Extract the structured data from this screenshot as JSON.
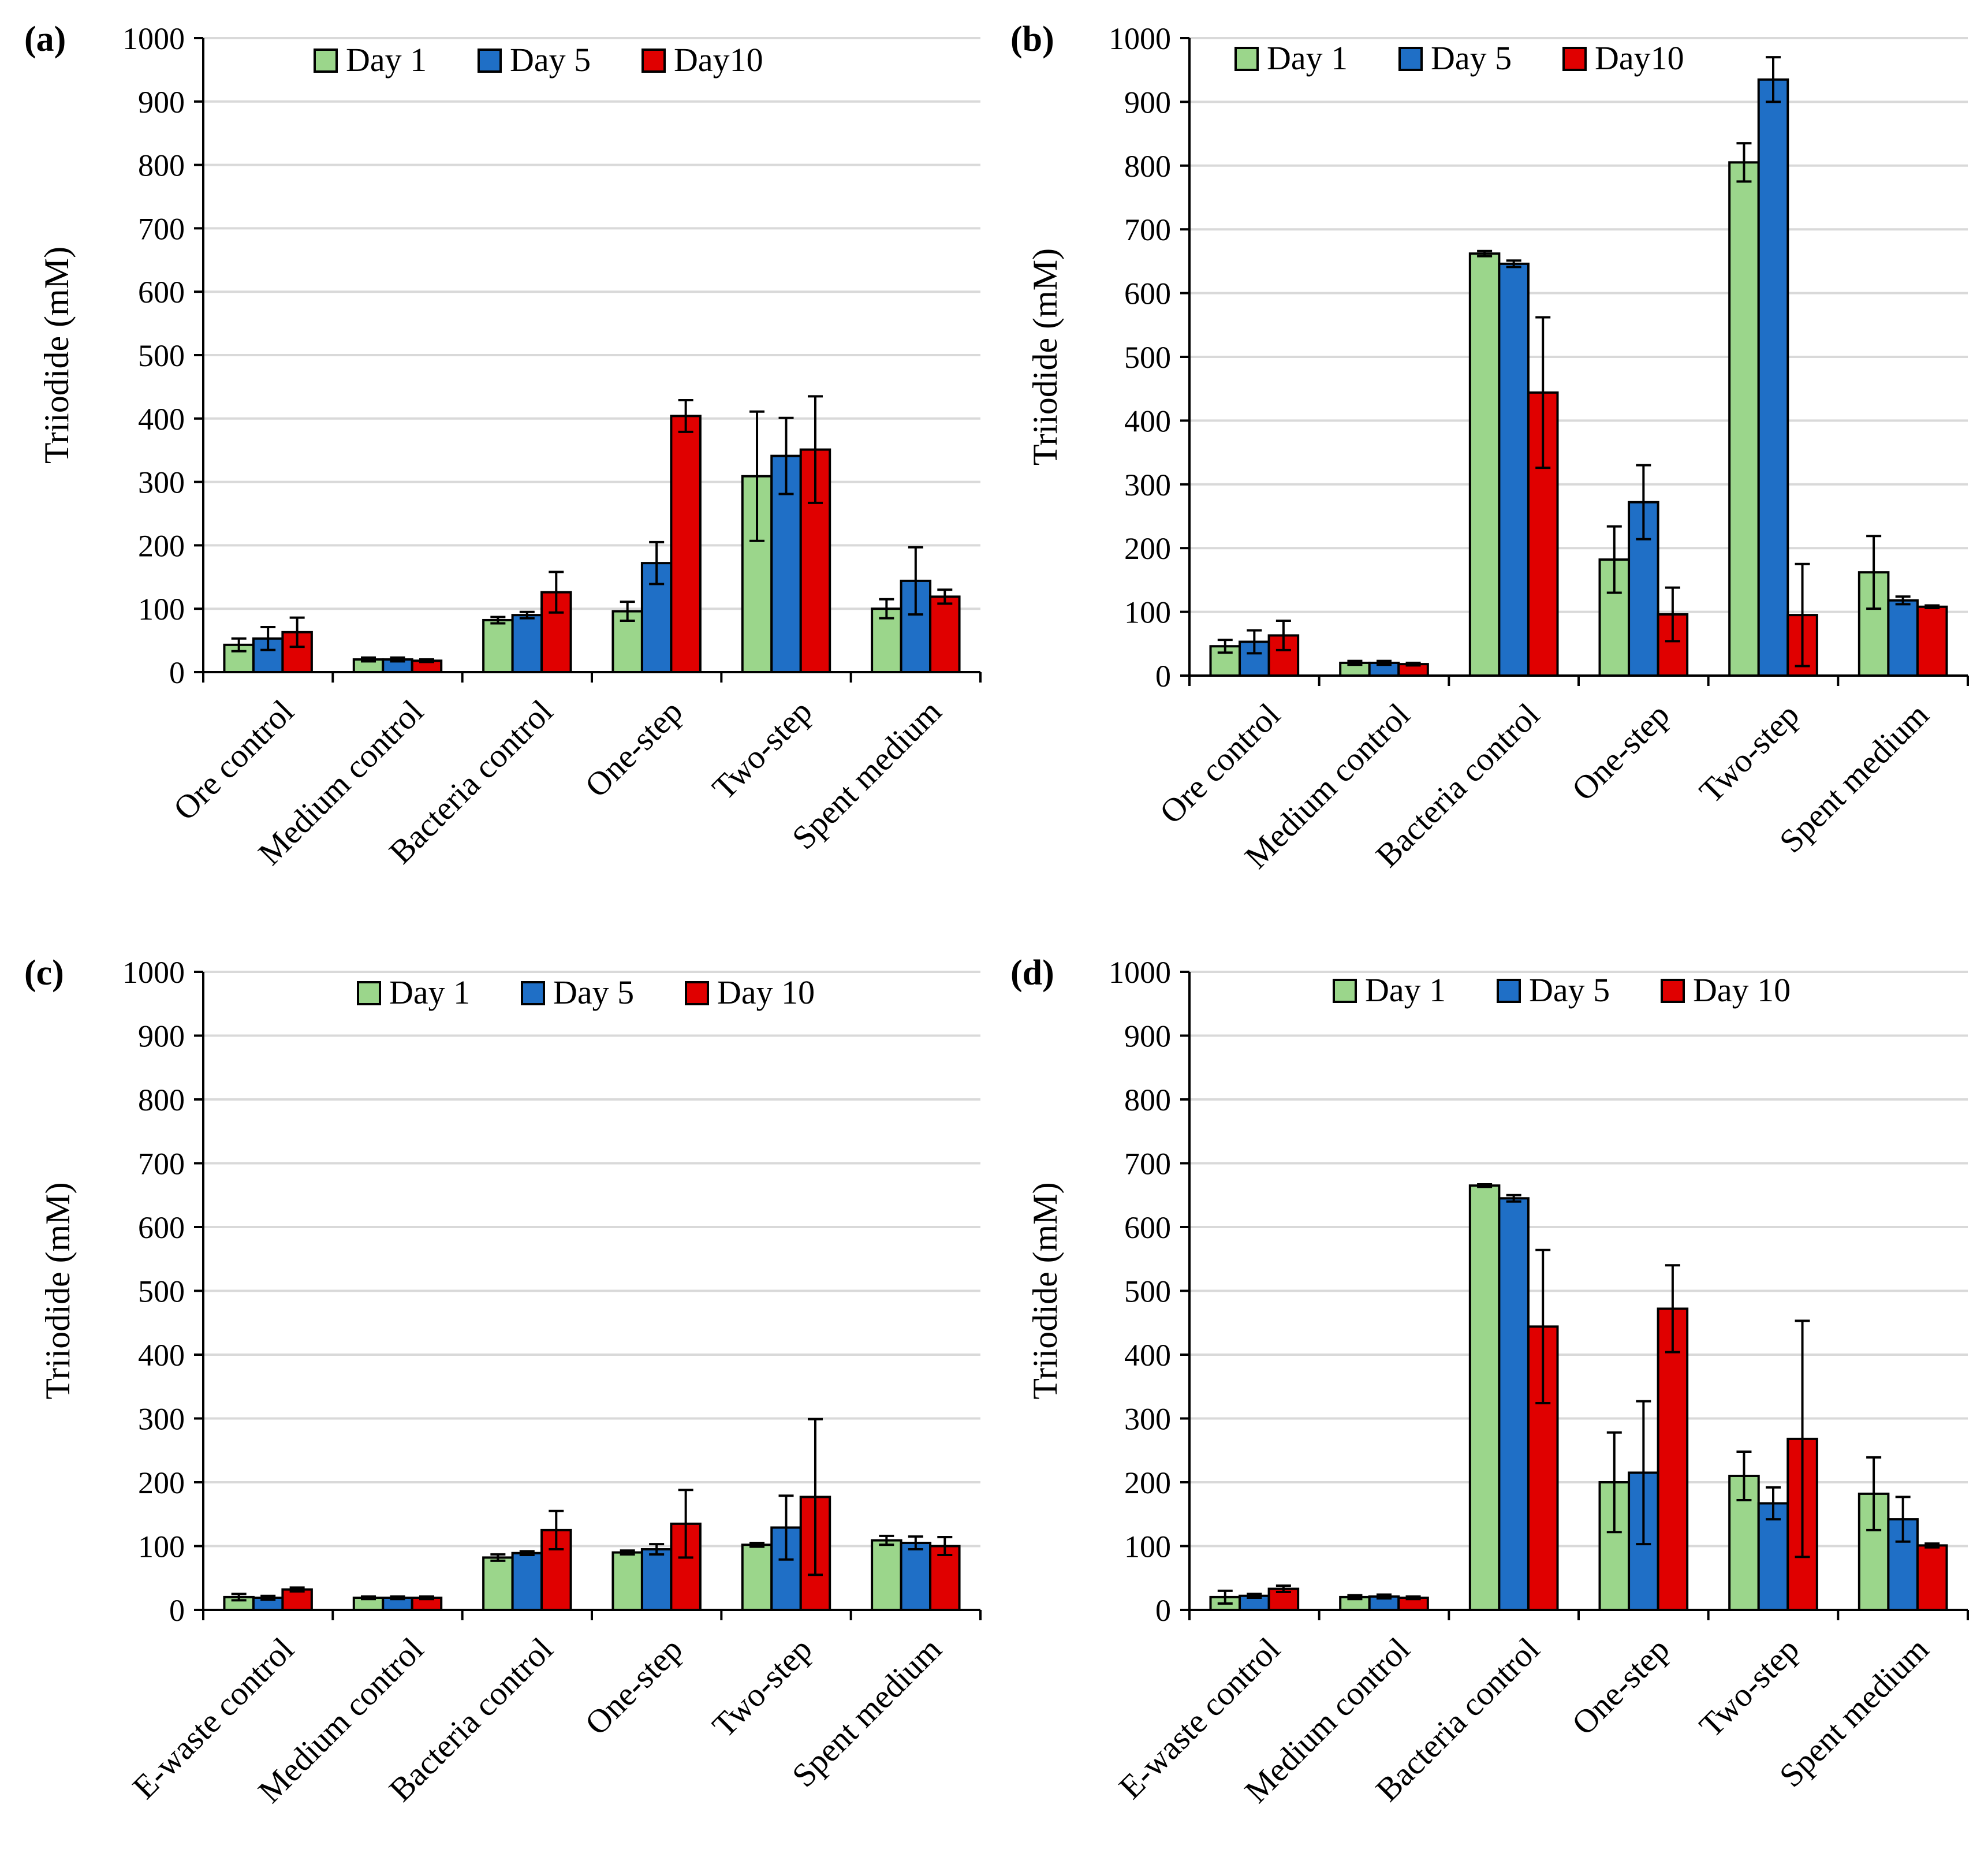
{
  "colors": {
    "day1": "#9bd68b",
    "day5": "#1f6fc6",
    "day10": "#e00000",
    "grid": "#d9d9d9",
    "axis": "#000000"
  },
  "chart_data": [
    {
      "panel": "(a)",
      "type": "bar",
      "ylabel": "Triiodide  (mM)",
      "ylim": [
        0,
        1000
      ],
      "yticks": [
        0,
        100,
        200,
        300,
        400,
        500,
        600,
        700,
        800,
        900,
        1000
      ],
      "categories": [
        "Ore control",
        "Medium control",
        "Bacteria control",
        "One-step",
        "Two-step",
        "Spent medium"
      ],
      "legend_position": "top",
      "series": [
        {
          "name": "Day 1",
          "color_key": "day1",
          "values": [
            43,
            20,
            82,
            96,
            309,
            100
          ],
          "errors": [
            10,
            3,
            5,
            15,
            102,
            15
          ]
        },
        {
          "name": "Day 5",
          "color_key": "day5",
          "values": [
            53,
            20,
            90,
            172,
            341,
            144
          ],
          "errors": [
            18,
            3,
            5,
            33,
            60,
            53
          ]
        },
        {
          "name": "Day10",
          "color_key": "day10",
          "values": [
            63,
            18,
            126,
            404,
            351,
            119
          ],
          "errors": [
            23,
            2,
            32,
            25,
            84,
            11
          ]
        }
      ]
    },
    {
      "panel": "(b)",
      "type": "bar",
      "ylabel": "Triiodide  (mM)",
      "ylim": [
        0,
        1000
      ],
      "yticks": [
        0,
        100,
        200,
        300,
        400,
        500,
        600,
        700,
        800,
        900,
        1000
      ],
      "categories": [
        "Ore control",
        "Medium control",
        "Bacteria control",
        "One-step",
        "Two-step",
        "Spent medium"
      ],
      "legend_position": "top",
      "series": [
        {
          "name": "Day 1",
          "color_key": "day1",
          "values": [
            46,
            20,
            662,
            182,
            805,
            162
          ],
          "errors": [
            10,
            3,
            4,
            52,
            30,
            57
          ]
        },
        {
          "name": "Day 5",
          "color_key": "day5",
          "values": [
            53,
            20,
            646,
            272,
            935,
            118
          ],
          "errors": [
            18,
            3,
            5,
            58,
            35,
            6
          ]
        },
        {
          "name": "Day10",
          "color_key": "day10",
          "values": [
            63,
            18,
            444,
            96,
            95,
            108
          ],
          "errors": [
            23,
            2,
            118,
            42,
            80,
            2
          ]
        }
      ]
    },
    {
      "panel": "(c)",
      "type": "bar",
      "ylabel": "Triiodide  (mM)",
      "ylim": [
        0,
        1000
      ],
      "yticks": [
        0,
        100,
        200,
        300,
        400,
        500,
        600,
        700,
        800,
        900,
        1000
      ],
      "categories": [
        "E-waste control",
        "Medium control",
        "Bacteria control",
        "One-step",
        "Two-step",
        "Spent medium"
      ],
      "legend_position": "top",
      "series": [
        {
          "name": "Day 1",
          "color_key": "day1",
          "values": [
            20,
            19,
            82,
            90,
            102,
            109
          ],
          "errors": [
            5,
            2,
            5,
            3,
            3,
            7
          ]
        },
        {
          "name": "Day 5",
          "color_key": "day5",
          "values": [
            19,
            19,
            89,
            95,
            129,
            105
          ],
          "errors": [
            3,
            2,
            3,
            8,
            50,
            10
          ]
        },
        {
          "name": "Day 10",
          "color_key": "day10",
          "values": [
            32,
            19,
            125,
            135,
            177,
            100
          ],
          "errors": [
            3,
            2,
            30,
            53,
            122,
            14
          ]
        }
      ]
    },
    {
      "panel": "(d)",
      "type": "bar",
      "ylabel": "Triiodide  (mM)",
      "ylim": [
        0,
        1000
      ],
      "yticks": [
        0,
        100,
        200,
        300,
        400,
        500,
        600,
        700,
        800,
        900,
        1000
      ],
      "categories": [
        "E-waste control",
        "Medium control",
        "Bacteria control",
        "One-step",
        "Two-step",
        "Spent medium"
      ],
      "legend_position": "top",
      "series": [
        {
          "name": "Day 1",
          "color_key": "day1",
          "values": [
            20,
            20,
            665,
            200,
            210,
            182
          ],
          "errors": [
            10,
            3,
            2,
            78,
            38,
            57
          ]
        },
        {
          "name": "Day 5",
          "color_key": "day5",
          "values": [
            22,
            21,
            645,
            215,
            167,
            142
          ],
          "errors": [
            3,
            3,
            5,
            112,
            25,
            35
          ]
        },
        {
          "name": "Day 10",
          "color_key": "day10",
          "values": [
            33,
            19,
            444,
            472,
            268,
            101
          ],
          "errors": [
            5,
            2,
            120,
            68,
            185,
            3
          ]
        }
      ]
    }
  ]
}
